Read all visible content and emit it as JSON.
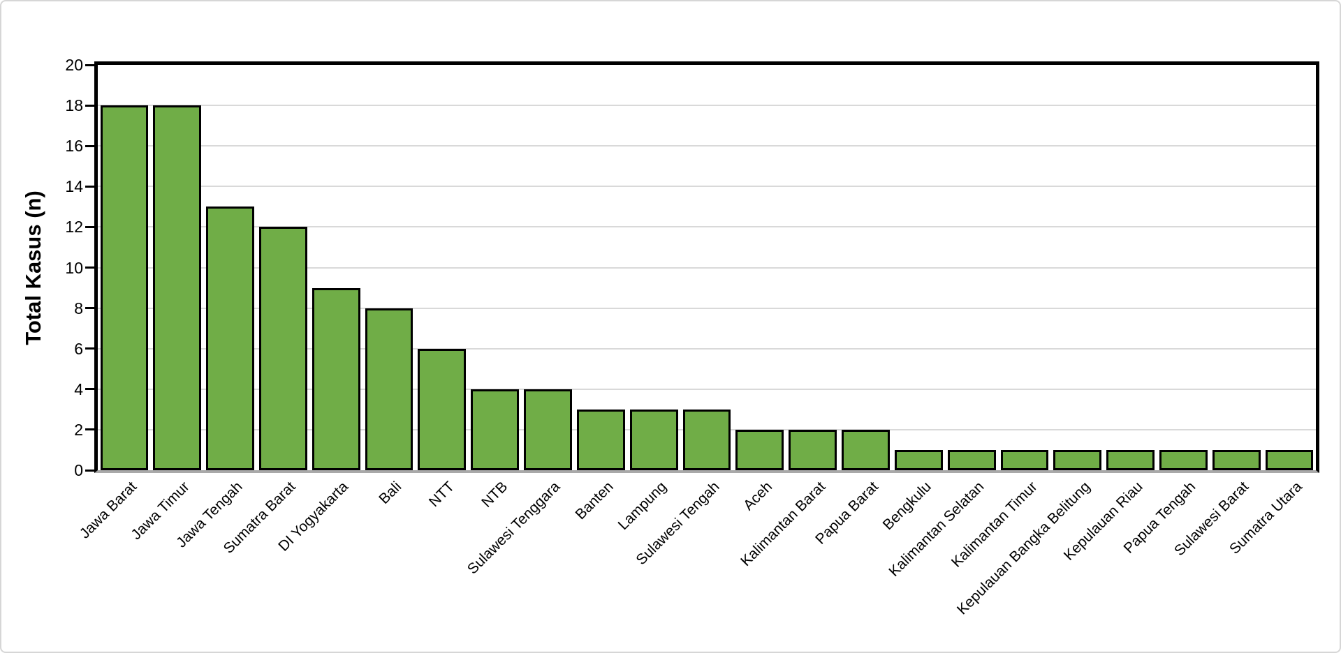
{
  "figure": {
    "background": "#FFFFFF",
    "frame_border": "#D6D6D6"
  },
  "chart_data": {
    "type": "bar",
    "title": "",
    "xlabel": "",
    "ylabel": "Total Kasus (n)",
    "ylim": [
      0,
      20
    ],
    "yticks": [
      0,
      2,
      4,
      6,
      8,
      10,
      12,
      14,
      16,
      18,
      20
    ],
    "grid": true,
    "legend": false,
    "categories": [
      "Jawa Barat",
      "Jawa Timur",
      "Jawa Tengah",
      "Sumatra Barat",
      "DI Yogyakarta",
      "Bali",
      "NTT",
      "NTB",
      "Sulawesi Tenggara",
      "Banten",
      "Lampung",
      "Sulawesi Tengah",
      "Aceh",
      "Kalimantan Barat",
      "Papua Barat",
      "Bengkulu",
      "Kalimantan Selatan",
      "Kalimantan Timur",
      "Kepulauan Bangka Belitung",
      "Kepulauan Riau",
      "Papua Tengah",
      "Sulawesi Barat",
      "Sumatra Utara"
    ],
    "values": [
      18,
      18,
      13,
      12,
      9,
      8,
      6,
      4,
      4,
      3,
      3,
      3,
      2,
      2,
      2,
      1,
      1,
      1,
      1,
      1,
      1,
      1,
      1
    ],
    "colors": {
      "bar_fill": "#70AD47",
      "bar_border": "#000000",
      "gridline": "#D9D9D9",
      "axis_frame": "#000000",
      "baseline": "#A9A9A9",
      "tick_label": "#000000",
      "category_label": "#000000"
    }
  }
}
